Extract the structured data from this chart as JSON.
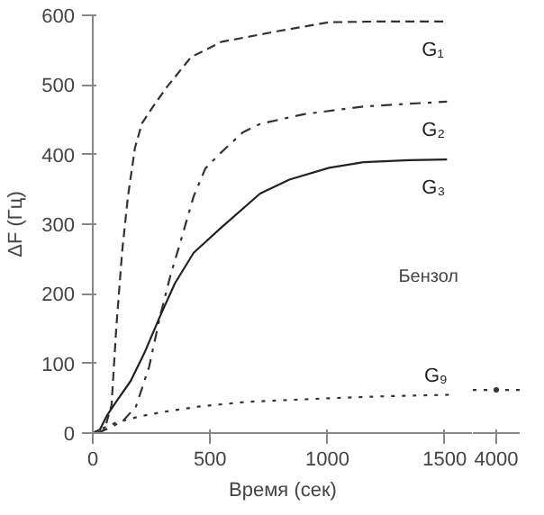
{
  "chart_data": [
    {
      "type": "line",
      "xlabel": "Время (сек)",
      "ylabel": "ΔF (Гц)",
      "annotations": [
        "Бензол"
      ],
      "xlim": [
        0,
        1620
      ],
      "ylim": [
        0,
        600
      ],
      "xticks": [
        0,
        500,
        1000,
        1500
      ],
      "yticks": [
        0,
        100,
        200,
        300,
        400,
        500,
        600
      ],
      "grid": false,
      "marker": "none",
      "series": [
        {
          "name": "G₁",
          "color": "#333333",
          "line_style": "dashed",
          "x": [
            20,
            50,
            80,
            100,
            125,
            150,
            180,
            210,
            257,
            316,
            419,
            550,
            786,
            1007,
            1200,
            1510
          ],
          "values": [
            0,
            5,
            40,
            150,
            260,
            340,
            410,
            445,
            469,
            497,
            540,
            562,
            577,
            590,
            591,
            591
          ]
        },
        {
          "name": "G₂",
          "color": "#333333",
          "line_style": "dashdot",
          "x": [
            20,
            75,
            130,
            184,
            240,
            287,
            330,
            375,
            430,
            480,
            544,
            640,
            713,
            900,
            1154,
            1350,
            1510
          ],
          "values": [
            0,
            8,
            18,
            38,
            95,
            168,
            225,
            276,
            340,
            380,
            402,
            432,
            444,
            458,
            469,
            473,
            476
          ]
        },
        {
          "name": "G₃",
          "color": "#222222",
          "line_style": "solid",
          "x": [
            0,
            30,
            60,
            100,
            162,
            220,
            287,
            350,
            430,
            544,
            713,
            838,
            1007,
            1154,
            1350,
            1510
          ],
          "values": [
            0,
            5,
            25,
            45,
            75,
            115,
            168,
            215,
            259,
            294,
            344,
            364,
            381,
            389,
            392,
            393
          ]
        },
        {
          "name": "G₉",
          "color": "#333333",
          "line_style": "dotted",
          "x": [
            0,
            50,
            100,
            200,
            294,
            450,
            662,
            1007,
            1250,
            1520
          ],
          "values": [
            0,
            8,
            15,
            24,
            30,
            38,
            45,
            50,
            53,
            55
          ]
        }
      ]
    },
    {
      "type": "line",
      "categories": [
        "4000"
      ],
      "ylim": [
        0,
        600
      ],
      "tick_labels": "x",
      "grid": false,
      "marker": "none",
      "series": [
        {
          "color": "#333333",
          "line_style": "dotted",
          "values": [
            62
          ]
        }
      ]
    }
  ]
}
